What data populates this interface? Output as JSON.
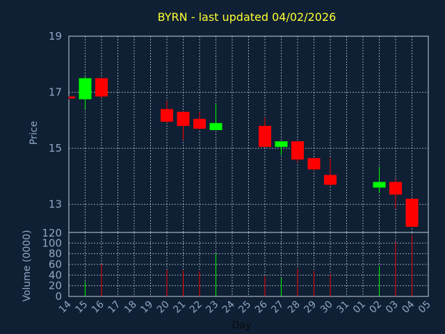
{
  "title": "BYRN - last updated 04/02/2026",
  "chart_data": [
    {
      "type": "candlestick",
      "ylabel": "Price",
      "ylim": [
        12,
        19
      ],
      "yticks": [
        13,
        15,
        17,
        19
      ],
      "grid": true,
      "colors": {
        "up": "#00ff00",
        "down": "#ff0000",
        "background": "#0f2034",
        "grid": "#c8d0dc",
        "text": "#8fa7c4",
        "title": "#ffff33"
      },
      "candles": [
        {
          "day": "14",
          "open": 16.85,
          "high": 16.85,
          "low": 16.75,
          "close": 16.78
        },
        {
          "day": "15",
          "open": 16.75,
          "high": 17.55,
          "low": 16.4,
          "close": 17.5
        },
        {
          "day": "16",
          "open": 17.5,
          "high": 17.5,
          "low": 16.8,
          "close": 16.85
        },
        {
          "day": "20",
          "open": 16.4,
          "high": 16.7,
          "low": 15.9,
          "close": 15.95
        },
        {
          "day": "21",
          "open": 16.3,
          "high": 16.3,
          "low": 15.3,
          "close": 15.8
        },
        {
          "day": "22",
          "open": 16.05,
          "high": 16.3,
          "low": 15.65,
          "close": 15.7
        },
        {
          "day": "23",
          "open": 15.65,
          "high": 16.6,
          "low": 15.65,
          "close": 15.9
        },
        {
          "day": "26",
          "open": 15.8,
          "high": 16.1,
          "low": 15.05,
          "close": 15.05
        },
        {
          "day": "27",
          "open": 15.05,
          "high": 15.25,
          "low": 14.75,
          "close": 15.25
        },
        {
          "day": "28",
          "open": 15.25,
          "high": 15.25,
          "low": 14.5,
          "close": 14.6
        },
        {
          "day": "29",
          "open": 14.65,
          "high": 14.65,
          "low": 14.2,
          "close": 14.25
        },
        {
          "day": "30",
          "open": 14.05,
          "high": 14.65,
          "low": 13.65,
          "close": 13.7
        },
        {
          "day": "02",
          "open": 13.6,
          "high": 14.35,
          "low": 13.4,
          "close": 13.8
        },
        {
          "day": "03",
          "open": 13.8,
          "high": 13.9,
          "low": 12.85,
          "close": 13.35
        },
        {
          "day": "04",
          "open": 13.2,
          "high": 13.2,
          "low": 12.2,
          "close": 12.2
        }
      ]
    },
    {
      "type": "bar",
      "ylabel": "Volume (0000)",
      "ylim": [
        0,
        120
      ],
      "yticks": [
        0,
        20,
        40,
        60,
        80,
        100,
        120
      ],
      "grid": true,
      "volumes": [
        {
          "day": "15",
          "value": 28,
          "direction": "up"
        },
        {
          "day": "16",
          "value": 60,
          "direction": "down"
        },
        {
          "day": "20",
          "value": 50,
          "direction": "down"
        },
        {
          "day": "21",
          "value": 48,
          "direction": "down"
        },
        {
          "day": "22",
          "value": 47,
          "direction": "down"
        },
        {
          "day": "23",
          "value": 80,
          "direction": "up"
        },
        {
          "day": "26",
          "value": 38,
          "direction": "down"
        },
        {
          "day": "27",
          "value": 35,
          "direction": "up"
        },
        {
          "day": "28",
          "value": 52,
          "direction": "down"
        },
        {
          "day": "29",
          "value": 48,
          "direction": "down"
        },
        {
          "day": "30",
          "value": 42,
          "direction": "down"
        },
        {
          "day": "02",
          "value": 57,
          "direction": "up"
        },
        {
          "day": "03",
          "value": 102,
          "direction": "down"
        },
        {
          "day": "04",
          "value": 115,
          "direction": "down"
        }
      ]
    }
  ],
  "xaxis": {
    "label": "Day",
    "ticks": [
      "14",
      "15",
      "16",
      "17",
      "18",
      "19",
      "20",
      "21",
      "22",
      "23",
      "24",
      "25",
      "26",
      "27",
      "28",
      "29",
      "30",
      "31",
      "01",
      "02",
      "03",
      "04",
      "05"
    ]
  }
}
